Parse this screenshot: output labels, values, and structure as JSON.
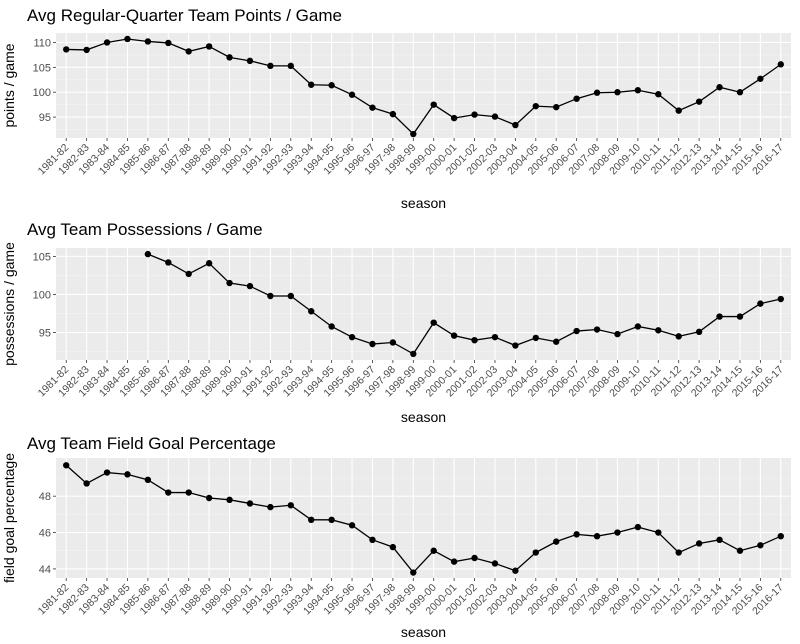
{
  "colors": {
    "panel": "#ebebeb",
    "grid_major": "#ffffff",
    "grid_minor": "#f4f4f4",
    "line": "#000000",
    "tick_text": "#4d4d4d"
  },
  "chart_data": [
    {
      "type": "line",
      "title": "Avg Regular-Quarter Team Points / Game",
      "xlabel": "season",
      "ylabel": "points / game",
      "grid": true,
      "ylim": [
        90.8,
        111.9
      ],
      "yticks": [
        95,
        100,
        105,
        110
      ],
      "categories": [
        "1981-82",
        "1982-83",
        "1983-84",
        "1984-85",
        "1985-86",
        "1986-87",
        "1987-88",
        "1988-89",
        "1989-90",
        "1990-91",
        "1991-92",
        "1992-93",
        "1993-94",
        "1994-95",
        "1995-96",
        "1996-97",
        "1997-98",
        "1998-99",
        "1999-00",
        "2000-01",
        "2001-02",
        "2002-03",
        "2003-04",
        "2004-05",
        "2005-06",
        "2006-07",
        "2007-08",
        "2008-09",
        "2009-10",
        "2010-11",
        "2011-12",
        "2012-13",
        "2013-14",
        "2014-15",
        "2015-16",
        "2016-17"
      ],
      "values": [
        108.6,
        108.5,
        110.0,
        110.7,
        110.2,
        109.9,
        108.2,
        109.2,
        107.0,
        106.3,
        105.3,
        105.3,
        101.5,
        101.4,
        99.5,
        96.9,
        95.6,
        91.6,
        97.5,
        94.8,
        95.5,
        95.1,
        93.4,
        97.2,
        97.0,
        98.7,
        99.9,
        100.0,
        100.4,
        99.6,
        96.3,
        98.1,
        101.0,
        100.0,
        102.7,
        105.6
      ]
    },
    {
      "type": "line",
      "title": "Avg Team Possessions / Game",
      "xlabel": "season",
      "ylabel": "possessions / game",
      "grid": true,
      "ylim": [
        91.4,
        106.1
      ],
      "yticks": [
        95,
        100,
        105
      ],
      "categories": [
        "1981-82",
        "1982-83",
        "1983-84",
        "1984-85",
        "1985-86",
        "1986-87",
        "1987-88",
        "1988-89",
        "1989-90",
        "1990-91",
        "1991-92",
        "1992-93",
        "1993-94",
        "1994-95",
        "1995-96",
        "1996-97",
        "1997-98",
        "1998-99",
        "1999-00",
        "2000-01",
        "2001-02",
        "2002-03",
        "2003-04",
        "2004-05",
        "2005-06",
        "2006-07",
        "2007-08",
        "2008-09",
        "2009-10",
        "2010-11",
        "2011-12",
        "2012-13",
        "2013-14",
        "2014-15",
        "2015-16",
        "2016-17"
      ],
      "values": [
        null,
        null,
        null,
        null,
        105.3,
        104.2,
        102.7,
        104.1,
        101.5,
        101.1,
        99.8,
        99.8,
        97.8,
        95.8,
        94.4,
        93.5,
        93.7,
        92.2,
        96.3,
        94.6,
        94.0,
        94.4,
        93.3,
        94.3,
        93.8,
        95.2,
        95.4,
        94.8,
        95.8,
        95.3,
        94.5,
        95.1,
        97.1,
        97.1,
        98.8,
        99.4
      ]
    },
    {
      "type": "line",
      "title": "Avg Team Field Goal Percentage",
      "xlabel": "season",
      "ylabel": "field goal percentage",
      "grid": true,
      "ylim": [
        43.5,
        50.1
      ],
      "yticks": [
        44,
        46,
        48
      ],
      "categories": [
        "1981-82",
        "1982-83",
        "1983-84",
        "1984-85",
        "1985-86",
        "1986-87",
        "1987-88",
        "1988-89",
        "1989-90",
        "1990-91",
        "1991-92",
        "1992-93",
        "1993-94",
        "1994-95",
        "1995-96",
        "1996-97",
        "1997-98",
        "1998-99",
        "1999-00",
        "2000-01",
        "2001-02",
        "2002-03",
        "2003-04",
        "2004-05",
        "2005-06",
        "2006-07",
        "2007-08",
        "2008-09",
        "2009-10",
        "2010-11",
        "2011-12",
        "2012-13",
        "2013-14",
        "2014-15",
        "2015-16",
        "2016-17"
      ],
      "values": [
        49.7,
        48.7,
        49.3,
        49.2,
        48.9,
        48.2,
        48.2,
        47.9,
        47.8,
        47.6,
        47.4,
        47.5,
        46.7,
        46.7,
        46.4,
        45.6,
        45.2,
        43.8,
        45.0,
        44.4,
        44.6,
        44.3,
        43.9,
        44.9,
        45.5,
        45.9,
        45.8,
        46.0,
        46.3,
        46.0,
        44.9,
        45.4,
        45.6,
        45.0,
        45.3,
        45.8
      ]
    }
  ]
}
